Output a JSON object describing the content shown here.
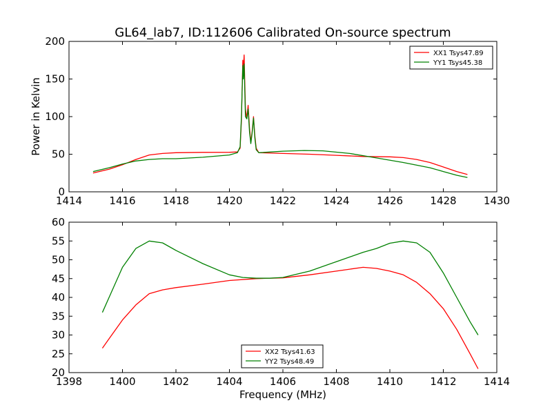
{
  "chart_data": [
    {
      "type": "line",
      "title": "GL64_lab7, ID:112606 Calibrated On-source spectrum",
      "xlabel": "",
      "ylabel": "Power in Kelvin",
      "xlim": [
        1414,
        1430
      ],
      "ylim": [
        0,
        200
      ],
      "xticks": [
        1414,
        1416,
        1418,
        1420,
        1422,
        1424,
        1426,
        1428,
        1430
      ],
      "yticks": [
        0,
        50,
        100,
        150,
        200
      ],
      "grid": false,
      "legend_position": "top-right",
      "series": [
        {
          "name": "XX1 Tsys47.89",
          "color": "#ff0000",
          "points": [
            [
              1414.9,
              25
            ],
            [
              1415.5,
              30
            ],
            [
              1416,
              36
            ],
            [
              1416.5,
              43
            ],
            [
              1417,
              49
            ],
            [
              1417.5,
              51
            ],
            [
              1418,
              52
            ],
            [
              1419,
              52.5
            ],
            [
              1420,
              52.6
            ],
            [
              1420.3,
              53
            ],
            [
              1420.4,
              58
            ],
            [
              1420.45,
              95
            ],
            [
              1420.5,
              175
            ],
            [
              1420.52,
              160
            ],
            [
              1420.55,
              182
            ],
            [
              1420.6,
              110
            ],
            [
              1420.65,
              98
            ],
            [
              1420.7,
              115
            ],
            [
              1420.75,
              85
            ],
            [
              1420.8,
              66
            ],
            [
              1420.85,
              80
            ],
            [
              1420.9,
              100
            ],
            [
              1420.95,
              75
            ],
            [
              1421,
              58
            ],
            [
              1421.1,
              52
            ],
            [
              1422,
              51
            ],
            [
              1423,
              50
            ],
            [
              1424,
              48.5
            ],
            [
              1425,
              47
            ],
            [
              1426,
              46.5
            ],
            [
              1426.5,
              45.5
            ],
            [
              1427,
              43
            ],
            [
              1427.5,
              39
            ],
            [
              1428,
              33
            ],
            [
              1428.5,
              27
            ],
            [
              1428.9,
              23
            ]
          ]
        },
        {
          "name": "YY1 Tsys45.38",
          "color": "#008000",
          "points": [
            [
              1414.9,
              27
            ],
            [
              1415.5,
              32
            ],
            [
              1416,
              37
            ],
            [
              1416.5,
              41
            ],
            [
              1417,
              43
            ],
            [
              1417.5,
              44
            ],
            [
              1418,
              44
            ],
            [
              1419,
              46
            ],
            [
              1420,
              49
            ],
            [
              1420.3,
              52
            ],
            [
              1420.4,
              60
            ],
            [
              1420.45,
              100
            ],
            [
              1420.5,
              168
            ],
            [
              1420.52,
              150
            ],
            [
              1420.55,
              170
            ],
            [
              1420.6,
              100
            ],
            [
              1420.65,
              97
            ],
            [
              1420.7,
              110
            ],
            [
              1420.75,
              80
            ],
            [
              1420.8,
              64
            ],
            [
              1420.85,
              78
            ],
            [
              1420.9,
              98
            ],
            [
              1420.95,
              72
            ],
            [
              1421,
              56
            ],
            [
              1421.1,
              52
            ],
            [
              1422,
              54
            ],
            [
              1422.8,
              55
            ],
            [
              1423.5,
              54.5
            ],
            [
              1424.5,
              51
            ],
            [
              1425.5,
              45
            ],
            [
              1426.5,
              39
            ],
            [
              1427.5,
              32
            ],
            [
              1428,
              27
            ],
            [
              1428.5,
              22
            ],
            [
              1428.9,
              19
            ]
          ]
        }
      ]
    },
    {
      "type": "line",
      "title": "",
      "xlabel": "Frequency (MHz)",
      "ylabel": "",
      "xlim": [
        1398,
        1414
      ],
      "ylim": [
        20,
        60
      ],
      "xticks": [
        1398,
        1400,
        1402,
        1404,
        1406,
        1408,
        1410,
        1412,
        1414
      ],
      "yticks": [
        20,
        25,
        30,
        35,
        40,
        45,
        50,
        55,
        60
      ],
      "grid": false,
      "legend_position": "bottom-center",
      "series": [
        {
          "name": "XX2 Tsys41.63",
          "color": "#ff0000",
          "points": [
            [
              1399.25,
              26.5
            ],
            [
              1399.5,
              29
            ],
            [
              1400,
              34
            ],
            [
              1400.5,
              38
            ],
            [
              1401,
              41
            ],
            [
              1401.5,
              42
            ],
            [
              1402,
              42.6
            ],
            [
              1403,
              43.5
            ],
            [
              1404,
              44.5
            ],
            [
              1405,
              45
            ],
            [
              1406,
              45.2
            ],
            [
              1407,
              46
            ],
            [
              1408,
              47
            ],
            [
              1408.5,
              47.5
            ],
            [
              1409,
              48
            ],
            [
              1409.5,
              47.7
            ],
            [
              1410,
              47
            ],
            [
              1410.5,
              46
            ],
            [
              1411,
              44
            ],
            [
              1411.5,
              41
            ],
            [
              1412,
              37
            ],
            [
              1412.5,
              31.5
            ],
            [
              1413,
              25
            ],
            [
              1413.3,
              21
            ]
          ]
        },
        {
          "name": "YY2 Tsys48.49",
          "color": "#008000",
          "points": [
            [
              1399.25,
              36
            ],
            [
              1399.5,
              40
            ],
            [
              1400,
              48
            ],
            [
              1400.5,
              53
            ],
            [
              1401,
              55
            ],
            [
              1401.5,
              54.5
            ],
            [
              1402,
              52.5
            ],
            [
              1403,
              49
            ],
            [
              1404,
              46
            ],
            [
              1404.5,
              45.3
            ],
            [
              1405,
              45.1
            ],
            [
              1405.5,
              45.1
            ],
            [
              1406,
              45.3
            ],
            [
              1407,
              47
            ],
            [
              1408,
              49.5
            ],
            [
              1409,
              52
            ],
            [
              1409.5,
              53
            ],
            [
              1410,
              54.4
            ],
            [
              1410.5,
              55
            ],
            [
              1411,
              54.5
            ],
            [
              1411.5,
              52
            ],
            [
              1412,
              46.5
            ],
            [
              1412.5,
              40
            ],
            [
              1413,
              33.5
            ],
            [
              1413.3,
              30
            ]
          ]
        }
      ]
    }
  ]
}
